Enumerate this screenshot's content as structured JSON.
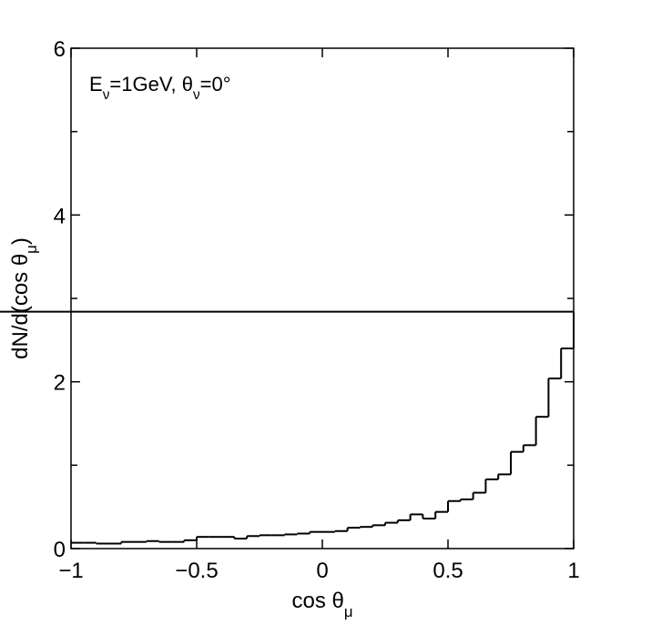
{
  "chart_data": {
    "type": "histogram",
    "annotation": [
      "E",
      "ν",
      "=1GeV, θ",
      "ν",
      "=0°"
    ],
    "xlabel": [
      "cos θ",
      "μ"
    ],
    "ylabel": [
      "dN/d(cos θ",
      "μ",
      ")"
    ],
    "bins": [
      -1,
      -0.95,
      -0.9,
      -0.85,
      -0.8,
      -0.75,
      -0.7,
      -0.65,
      -0.6,
      -0.55,
      -0.5,
      -0.45,
      -0.4,
      -0.35,
      -0.3,
      -0.25,
      -0.2,
      -0.15,
      -0.1,
      -0.05,
      0,
      0.05,
      0.1,
      0.15,
      0.2,
      0.25,
      0.3,
      0.35,
      0.4,
      0.45,
      0.5,
      0.55,
      0.6,
      0.65,
      0.7,
      0.75,
      0.8,
      0.85,
      0.9,
      0.95,
      1
    ],
    "counts": [
      0.07,
      0.07,
      0.06,
      0.06,
      0.08,
      0.08,
      0.09,
      0.08,
      0.08,
      0.1,
      0.14,
      0.14,
      0.14,
      0.12,
      0.15,
      0.16,
      0.16,
      0.17,
      0.18,
      0.2,
      0.2,
      0.21,
      0.25,
      0.26,
      0.28,
      0.31,
      0.34,
      0.41,
      0.36,
      0.44,
      0.57,
      0.59,
      0.67,
      0.83,
      0.89,
      1.16,
      1.24,
      1.58,
      2.04,
      2.4,
      2.84
    ],
    "color": "#000000",
    "xlim": [
      -1,
      1
    ],
    "xticks": [
      {
        "value": -1,
        "label": "−1"
      },
      {
        "value": -0.5,
        "label": "−0.5"
      },
      0,
      0.5,
      1
    ],
    "ylim": [
      0,
      6
    ],
    "yticks": [
      0,
      2,
      4,
      6
    ],
    "minor_yticks": [
      1,
      3,
      5
    ]
  }
}
